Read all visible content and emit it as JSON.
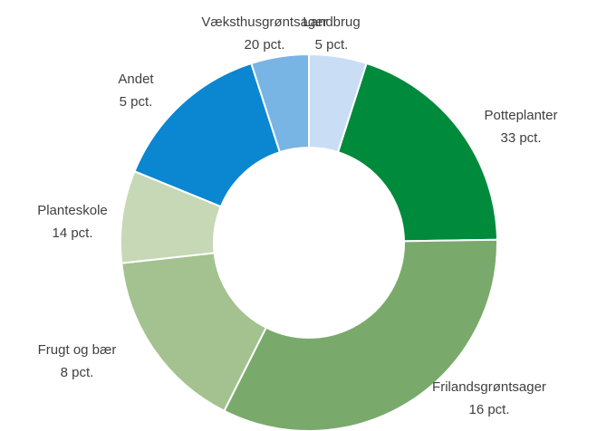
{
  "chart_data": {
    "type": "donut",
    "categories": [
      "Landbrug",
      "Væksthusgrøntsager",
      "Potteplanter",
      "Frilandsgrøntsager",
      "Frugt og bær",
      "Planteskole",
      "Andet"
    ],
    "values": [
      5,
      20,
      33,
      16,
      8,
      14,
      5
    ],
    "value_labels": [
      "5 pct.",
      "20 pct.",
      "33 pct.",
      "16 pct.",
      "8 pct.",
      "14 pct.",
      "5 pct."
    ],
    "colors": [
      "#c9ddf4",
      "#008a3b",
      "#79aa6b",
      "#a3c28f",
      "#c6d8b5",
      "#0b86d1",
      "#78b4e4"
    ]
  }
}
